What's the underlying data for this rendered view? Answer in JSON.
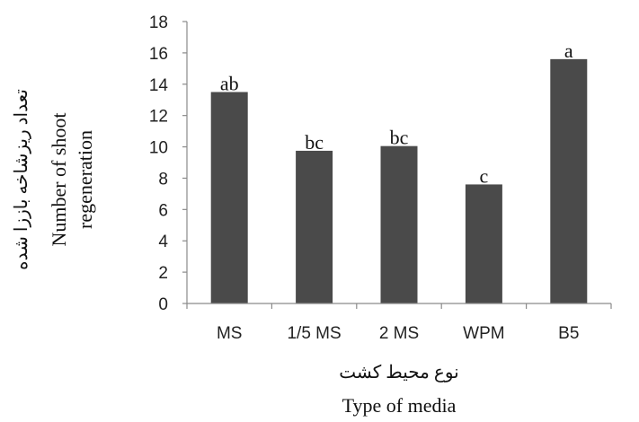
{
  "chart_data": {
    "type": "bar",
    "title": "",
    "categories": [
      "MS",
      "1/5 MS",
      "2 MS",
      "WPM",
      "B5"
    ],
    "values": [
      13.5,
      9.75,
      10.05,
      7.6,
      15.6
    ],
    "data_labels": [
      "ab",
      "bc",
      "bc",
      "c",
      "a"
    ],
    "xlabel": "Type of media",
    "xlabel_persian": "نوع محیط کشت",
    "ylabel": "Number of shoot regeneration",
    "ylabel_line1": "Number of shoot",
    "ylabel_line2": "regeneration",
    "ylabel_persian": "تعداد ریزشاخه باززا شده",
    "ylim": [
      0,
      18
    ],
    "yticks": [
      "0",
      "2",
      "4",
      "6",
      "8",
      "10",
      "12",
      "14",
      "16",
      "18"
    ],
    "grid": false,
    "legend": "none",
    "bar_color": "#4a4a4a"
  }
}
